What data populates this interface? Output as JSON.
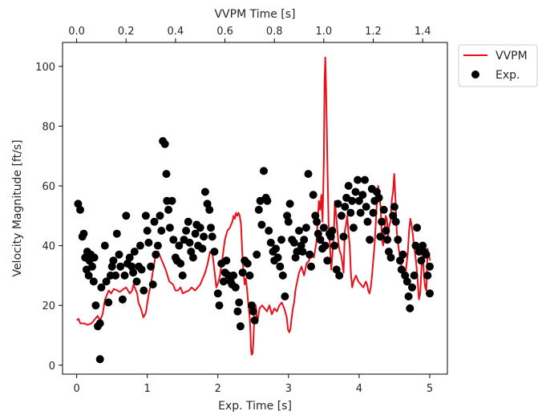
{
  "chart_data": {
    "type": "line",
    "xlabel": "Exp. Time [s]",
    "x2label": "VVPM Time [s]",
    "ylabel": "Velocity Magnitude [ft/s]",
    "xlim": [
      -0.2,
      5.25
    ],
    "x2lim": [
      -0.057,
      1.5
    ],
    "ylim": [
      -3,
      108
    ],
    "x_ticks": [
      0,
      1,
      2,
      3,
      4,
      5
    ],
    "x_tick_labels": [
      "0",
      "1",
      "2",
      "3",
      "4",
      "5"
    ],
    "x2_ticks": [
      0.0,
      0.2,
      0.4,
      0.6,
      0.8,
      1.0,
      1.2,
      1.4
    ],
    "x2_tick_labels": [
      "0.0",
      "0.2",
      "0.4",
      "0.6",
      "0.8",
      "1.0",
      "1.2",
      "1.4"
    ],
    "y_ticks": [
      0,
      20,
      40,
      60,
      80,
      100
    ],
    "y_tick_labels": [
      "0",
      "20",
      "40",
      "60",
      "80",
      "100"
    ],
    "grid": false,
    "legend": {
      "placement": "outside-top-right",
      "entries": [
        "VVPM",
        "Exp."
      ]
    },
    "series": [
      {
        "name": "VVPM",
        "kind": "line",
        "axis": "top",
        "color": "#e8101a",
        "x": [
          0.0,
          0.008,
          0.015,
          0.03,
          0.045,
          0.06,
          0.07,
          0.085,
          0.095,
          0.105,
          0.115,
          0.13,
          0.14,
          0.15,
          0.165,
          0.175,
          0.19,
          0.2,
          0.215,
          0.225,
          0.23,
          0.235,
          0.24,
          0.245,
          0.25,
          0.26,
          0.27,
          0.28,
          0.29,
          0.3,
          0.31,
          0.32,
          0.33,
          0.345,
          0.36,
          0.375,
          0.39,
          0.4,
          0.41,
          0.42,
          0.43,
          0.44,
          0.455,
          0.465,
          0.48,
          0.49,
          0.5,
          0.51,
          0.52,
          0.53,
          0.54,
          0.55,
          0.56,
          0.565,
          0.57,
          0.58,
          0.59,
          0.6,
          0.61,
          0.62,
          0.63,
          0.635,
          0.64,
          0.645,
          0.65,
          0.655,
          0.66,
          0.665,
          0.67,
          0.675,
          0.68,
          0.685,
          0.69,
          0.695,
          0.7,
          0.703,
          0.705,
          0.708,
          0.712,
          0.715,
          0.72,
          0.725,
          0.73,
          0.74,
          0.75,
          0.76,
          0.77,
          0.78,
          0.79,
          0.8,
          0.81,
          0.82,
          0.83,
          0.84,
          0.85,
          0.855,
          0.86,
          0.865,
          0.87,
          0.875,
          0.88,
          0.885,
          0.89,
          0.9,
          0.91,
          0.92,
          0.93,
          0.94,
          0.95,
          0.96,
          0.97,
          0.975,
          0.98,
          0.985,
          0.99,
          0.995,
          1.0,
          1.003,
          1.006,
          1.01,
          1.015,
          1.02,
          1.025,
          1.03,
          1.035,
          1.04,
          1.045,
          1.05,
          1.055,
          1.06,
          1.065,
          1.07,
          1.075,
          1.08,
          1.085,
          1.09,
          1.095,
          1.1,
          1.105,
          1.11,
          1.115,
          1.12,
          1.13,
          1.14,
          1.15,
          1.16,
          1.17,
          1.175,
          1.18,
          1.185,
          1.19,
          1.195,
          1.2,
          1.205,
          1.21,
          1.215,
          1.22,
          1.225,
          1.23,
          1.235,
          1.24,
          1.245,
          1.25,
          1.255,
          1.26,
          1.265,
          1.27,
          1.275,
          1.28,
          1.285,
          1.29,
          1.295,
          1.3,
          1.31,
          1.32,
          1.33,
          1.34,
          1.345,
          1.35,
          1.355,
          1.36,
          1.365,
          1.37,
          1.375,
          1.38,
          1.385,
          1.39,
          1.395,
          1.4,
          1.405,
          1.41,
          1.415,
          1.42,
          1.43
        ],
        "y": [
          15,
          15.5,
          14,
          14,
          13.5,
          14,
          15,
          16.5,
          15,
          17,
          22,
          25,
          24,
          25.5,
          25,
          24.5,
          25.5,
          26,
          24,
          25,
          27,
          26,
          25,
          24,
          21,
          19,
          16,
          17.5,
          23,
          27,
          32,
          37,
          38,
          35,
          32,
          28,
          27,
          25,
          25,
          26,
          24,
          24.5,
          25,
          26,
          25,
          26,
          27,
          29,
          31,
          34,
          38,
          37,
          30,
          26,
          27,
          30,
          36,
          42,
          45,
          46,
          48,
          50,
          49,
          51,
          50,
          51,
          50,
          47,
          38,
          31,
          27,
          29,
          25,
          20,
          16,
          12,
          6,
          3.5,
          4,
          8,
          18,
          20,
          14,
          19,
          20,
          19,
          18,
          20,
          17,
          19,
          18,
          20,
          21,
          19,
          16,
          12,
          11,
          12,
          16,
          19,
          21,
          25,
          27,
          31,
          33,
          30,
          34,
          35,
          38,
          36,
          41,
          48,
          55,
          52,
          57,
          48,
          68,
          95,
          103,
          90,
          65,
          45,
          40,
          32,
          37,
          43,
          55,
          50,
          45,
          40,
          38,
          37,
          34,
          31,
          45,
          47,
          50,
          44,
          40,
          30,
          26,
          28,
          30,
          28,
          27,
          26,
          28,
          27,
          25,
          24,
          26,
          30,
          35,
          40,
          47,
          55,
          60,
          56,
          53,
          42,
          40,
          43,
          50,
          49,
          43,
          47,
          48,
          55,
          58,
          64,
          55,
          45,
          41,
          35,
          31,
          30,
          38,
          45,
          49,
          47,
          44,
          40,
          37,
          33,
          28,
          22,
          24,
          32,
          39,
          30,
          26,
          25,
          39,
          35
        ]
      },
      {
        "name": "Exp.",
        "kind": "scatter",
        "axis": "bottom",
        "color": "#000000",
        "points": [
          [
            0.02,
            54
          ],
          [
            0.05,
            52
          ],
          [
            0.08,
            43
          ],
          [
            0.1,
            44
          ],
          [
            0.12,
            36
          ],
          [
            0.14,
            32
          ],
          [
            0.15,
            38
          ],
          [
            0.17,
            30
          ],
          [
            0.18,
            35
          ],
          [
            0.2,
            37
          ],
          [
            0.22,
            33
          ],
          [
            0.24,
            28
          ],
          [
            0.25,
            36
          ],
          [
            0.27,
            20
          ],
          [
            0.3,
            13
          ],
          [
            0.33,
            2
          ],
          [
            0.33,
            14
          ],
          [
            0.35,
            26
          ],
          [
            0.4,
            40
          ],
          [
            0.42,
            28
          ],
          [
            0.45,
            21
          ],
          [
            0.48,
            30
          ],
          [
            0.5,
            33
          ],
          [
            0.52,
            35
          ],
          [
            0.55,
            30
          ],
          [
            0.57,
            44
          ],
          [
            0.6,
            37
          ],
          [
            0.62,
            33
          ],
          [
            0.65,
            22
          ],
          [
            0.68,
            30
          ],
          [
            0.7,
            50
          ],
          [
            0.72,
            34
          ],
          [
            0.75,
            36
          ],
          [
            0.78,
            33
          ],
          [
            0.8,
            31
          ],
          [
            0.82,
            38
          ],
          [
            0.85,
            28
          ],
          [
            0.88,
            33
          ],
          [
            0.9,
            40
          ],
          [
            0.92,
            32
          ],
          [
            0.95,
            25
          ],
          [
            0.98,
            50
          ],
          [
            1.0,
            45
          ],
          [
            1.02,
            41
          ],
          [
            1.05,
            33
          ],
          [
            1.08,
            27
          ],
          [
            1.1,
            48
          ],
          [
            1.12,
            37
          ],
          [
            1.15,
            40
          ],
          [
            1.18,
            50
          ],
          [
            1.2,
            45
          ],
          [
            1.22,
            75
          ],
          [
            1.25,
            74
          ],
          [
            1.27,
            64
          ],
          [
            1.28,
            55
          ],
          [
            1.3,
            52
          ],
          [
            1.32,
            46
          ],
          [
            1.35,
            55
          ],
          [
            1.37,
            42
          ],
          [
            1.4,
            36
          ],
          [
            1.42,
            35
          ],
          [
            1.45,
            40
          ],
          [
            1.47,
            34
          ],
          [
            1.5,
            30
          ],
          [
            1.52,
            42
          ],
          [
            1.55,
            45
          ],
          [
            1.58,
            48
          ],
          [
            1.6,
            41
          ],
          [
            1.62,
            38
          ],
          [
            1.65,
            36
          ],
          [
            1.68,
            44
          ],
          [
            1.7,
            47
          ],
          [
            1.72,
            40
          ],
          [
            1.75,
            46
          ],
          [
            1.78,
            39
          ],
          [
            1.8,
            43
          ],
          [
            1.82,
            58
          ],
          [
            1.85,
            54
          ],
          [
            1.88,
            52
          ],
          [
            1.9,
            46
          ],
          [
            1.92,
            43
          ],
          [
            1.95,
            38
          ],
          [
            2.0,
            24
          ],
          [
            2.02,
            20
          ],
          [
            2.05,
            34
          ],
          [
            2.08,
            28
          ],
          [
            2.1,
            31
          ],
          [
            2.12,
            35
          ],
          [
            2.15,
            30
          ],
          [
            2.18,
            28
          ],
          [
            2.2,
            27
          ],
          [
            2.22,
            30
          ],
          [
            2.25,
            26
          ],
          [
            2.28,
            18
          ],
          [
            2.3,
            21
          ],
          [
            2.32,
            13
          ],
          [
            2.35,
            31
          ],
          [
            2.38,
            35
          ],
          [
            2.42,
            34
          ],
          [
            2.45,
            30
          ],
          [
            2.48,
            20
          ],
          [
            2.5,
            18
          ],
          [
            2.52,
            15
          ],
          [
            2.55,
            37
          ],
          [
            2.58,
            52
          ],
          [
            2.6,
            55
          ],
          [
            2.62,
            47
          ],
          [
            2.65,
            65
          ],
          [
            2.68,
            56
          ],
          [
            2.7,
            55
          ],
          [
            2.72,
            45
          ],
          [
            2.75,
            41
          ],
          [
            2.78,
            38
          ],
          [
            2.8,
            35
          ],
          [
            2.82,
            39
          ],
          [
            2.85,
            36
          ],
          [
            2.88,
            33
          ],
          [
            2.9,
            42
          ],
          [
            2.92,
            30
          ],
          [
            2.95,
            23
          ],
          [
            2.98,
            50
          ],
          [
            3.0,
            48
          ],
          [
            3.02,
            54
          ],
          [
            3.05,
            42
          ],
          [
            3.08,
            41
          ],
          [
            3.1,
            36
          ],
          [
            3.12,
            38
          ],
          [
            3.15,
            45
          ],
          [
            3.18,
            40
          ],
          [
            3.2,
            38
          ],
          [
            3.22,
            42
          ],
          [
            3.25,
            46
          ],
          [
            3.28,
            64
          ],
          [
            3.3,
            37
          ],
          [
            3.32,
            33
          ],
          [
            3.35,
            57
          ],
          [
            3.38,
            50
          ],
          [
            3.4,
            48
          ],
          [
            3.42,
            44
          ],
          [
            3.45,
            42
          ],
          [
            3.48,
            39
          ],
          [
            3.5,
            46
          ],
          [
            3.52,
            40
          ],
          [
            3.55,
            35
          ],
          [
            3.58,
            44
          ],
          [
            3.6,
            43
          ],
          [
            3.62,
            45
          ],
          [
            3.65,
            40
          ],
          [
            3.68,
            32
          ],
          [
            3.7,
            54
          ],
          [
            3.72,
            30
          ],
          [
            3.75,
            50
          ],
          [
            3.78,
            43
          ],
          [
            3.8,
            53
          ],
          [
            3.82,
            56
          ],
          [
            3.85,
            60
          ],
          [
            3.88,
            51
          ],
          [
            3.9,
            55
          ],
          [
            3.92,
            46
          ],
          [
            3.95,
            58
          ],
          [
            3.98,
            62
          ],
          [
            4.0,
            55
          ],
          [
            4.02,
            51
          ],
          [
            4.05,
            57
          ],
          [
            4.08,
            62
          ],
          [
            4.1,
            53
          ],
          [
            4.12,
            48
          ],
          [
            4.15,
            42
          ],
          [
            4.18,
            59
          ],
          [
            4.2,
            51
          ],
          [
            4.22,
            55
          ],
          [
            4.25,
            58
          ],
          [
            4.28,
            56
          ],
          [
            4.3,
            43
          ],
          [
            4.32,
            48
          ],
          [
            4.35,
            52
          ],
          [
            4.38,
            45
          ],
          [
            4.4,
            42
          ],
          [
            4.42,
            38
          ],
          [
            4.45,
            36
          ],
          [
            4.48,
            50
          ],
          [
            4.5,
            53
          ],
          [
            4.52,
            48
          ],
          [
            4.55,
            42
          ],
          [
            4.58,
            35
          ],
          [
            4.6,
            32
          ],
          [
            4.62,
            37
          ],
          [
            4.65,
            30
          ],
          [
            4.68,
            28
          ],
          [
            4.7,
            23
          ],
          [
            4.72,
            19
          ],
          [
            4.75,
            26
          ],
          [
            4.78,
            30
          ],
          [
            4.8,
            40
          ],
          [
            4.82,
            46
          ],
          [
            4.85,
            38
          ],
          [
            4.88,
            35
          ],
          [
            4.9,
            40
          ],
          [
            4.92,
            38
          ],
          [
            4.95,
            37
          ],
          [
            4.97,
            30
          ],
          [
            5.0,
            33
          ],
          [
            5.0,
            24
          ]
        ]
      }
    ]
  }
}
